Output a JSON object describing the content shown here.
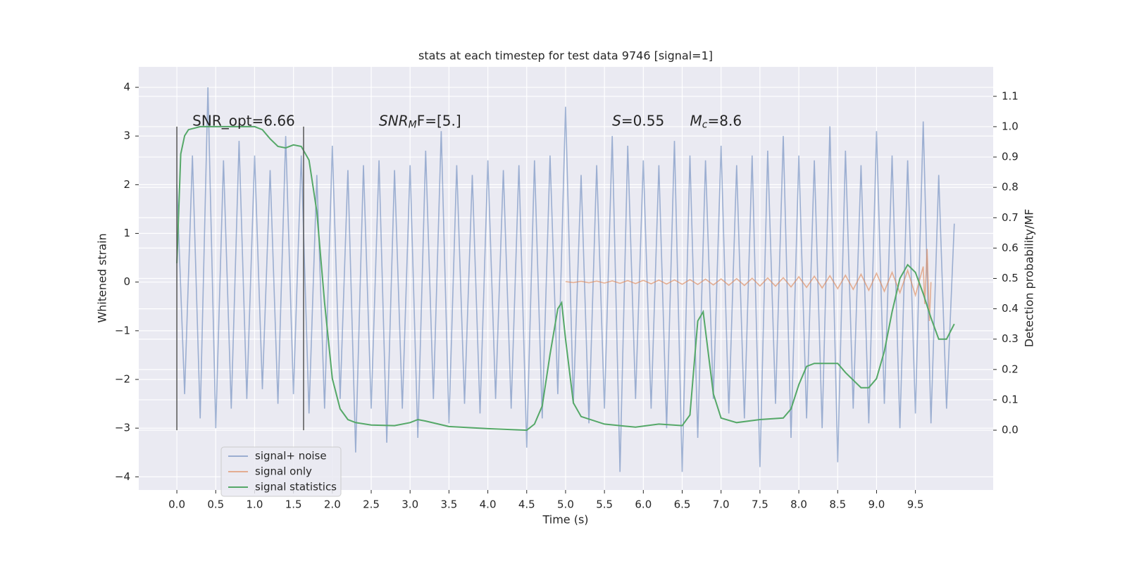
{
  "chart_data": {
    "type": "line",
    "title": "stats at each timestep for test data 9746 [signal=1]",
    "xlabel": "Time (s)",
    "ylabel": "Whitened strain",
    "y2label": "Detection probability/MF",
    "xlim": [
      -0.49,
      10.5
    ],
    "ylim": [
      -4.27,
      4.42
    ],
    "y2lim": [
      -0.197,
      1.197
    ],
    "xticks": [
      {
        "value": 0,
        "label": "0.0"
      },
      0.5,
      {
        "value": 1,
        "label": "1.0"
      },
      1.5,
      {
        "value": 2,
        "label": "2.0"
      },
      2.5,
      {
        "value": 3,
        "label": "3.0"
      },
      3.5,
      {
        "value": 4,
        "label": "4.0"
      },
      4.5,
      {
        "value": 5,
        "label": "5.0"
      },
      5.5,
      {
        "value": 6,
        "label": "6.0"
      },
      6.5,
      {
        "value": 7,
        "label": "7.0"
      },
      7.5,
      {
        "value": 8,
        "label": "8.0"
      },
      8.5,
      {
        "value": 9,
        "label": "9.0"
      },
      9.5
    ],
    "yticks": [
      {
        "value": -4,
        "label": "−4"
      },
      {
        "value": -3,
        "label": "−3"
      },
      {
        "value": -2,
        "label": "−2"
      },
      {
        "value": -1,
        "label": "−1"
      },
      0,
      1,
      2,
      3,
      4
    ],
    "y2ticks": [
      {
        "value": 0,
        "label": "0.0"
      },
      0.1,
      0.2,
      0.3,
      0.4,
      0.5,
      0.6,
      0.7,
      0.8,
      0.9,
      {
        "value": 1,
        "label": "1.0"
      },
      1.1
    ],
    "grid": true,
    "legend": "lower left",
    "vlines": {
      "x": [
        0,
        1.63
      ],
      "ymin": 0,
      "ymax": 1,
      "axis": "y2",
      "color": "#555555"
    },
    "annotations": [
      {
        "text": "SNR_opt=6.66",
        "x": 0.2,
        "y": 3.3
      },
      {
        "text": "SNR",
        "sub": "M",
        "rest": "F=[5.]",
        "x": 2.6,
        "y": 3.3,
        "italic": true
      },
      {
        "text": "S",
        "rest": "=0.55",
        "x": 5.6,
        "y": 3.3,
        "italic": true
      },
      {
        "text": "M",
        "sub": "c",
        "rest": "=8.6",
        "x": 6.6,
        "y": 3.3,
        "italic": true
      }
    ],
    "series": [
      {
        "name": "signal+ noise",
        "color": "#4c72b0",
        "opacity": 0.5,
        "axis": "y",
        "x": [
          0,
          0.1,
          0.2,
          0.3,
          0.4,
          0.5,
          0.6,
          0.7,
          0.8,
          0.9,
          1,
          1.1,
          1.2,
          1.3,
          1.4,
          1.5,
          1.6,
          1.7,
          1.8,
          1.9,
          2,
          2.1,
          2.2,
          2.3,
          2.4,
          2.5,
          2.6,
          2.7,
          2.8,
          2.9,
          3,
          3.1,
          3.2,
          3.3,
          3.4,
          3.5,
          3.6,
          3.7,
          3.8,
          3.9,
          4,
          4.1,
          4.2,
          4.3,
          4.4,
          4.5,
          4.6,
          4.7,
          4.8,
          4.9,
          5,
          5.1,
          5.2,
          5.3,
          5.4,
          5.5,
          5.6,
          5.7,
          5.8,
          5.9,
          6,
          6.1,
          6.2,
          6.3,
          6.4,
          6.5,
          6.6,
          6.7,
          6.8,
          6.9,
          7,
          7.1,
          7.2,
          7.3,
          7.4,
          7.5,
          7.6,
          7.7,
          7.8,
          7.9,
          8,
          8.1,
          8.2,
          8.3,
          8.4,
          8.5,
          8.6,
          8.7,
          8.8,
          8.9,
          9,
          9.1,
          9.2,
          9.3,
          9.4,
          9.5,
          9.6,
          9.7,
          9.8,
          9.9,
          10
        ],
        "values": [
          2.0,
          -2.3,
          2.6,
          -2.8,
          4.0,
          -3.0,
          2.5,
          -2.6,
          2.9,
          -2.4,
          2.6,
          -2.2,
          2.3,
          -2.5,
          3.0,
          -2.3,
          2.6,
          -2.7,
          2.2,
          -2.6,
          2.8,
          -2.4,
          2.3,
          -3.5,
          2.4,
          -2.6,
          2.5,
          -3.3,
          2.3,
          -2.6,
          2.4,
          -3.2,
          2.7,
          -2.4,
          3.1,
          -2.9,
          2.4,
          -2.5,
          2.2,
          -2.7,
          2.5,
          -2.4,
          2.3,
          -2.6,
          2.4,
          -3.4,
          2.5,
          -2.8,
          2.6,
          -2.3,
          3.6,
          -2.5,
          2.2,
          -2.9,
          2.4,
          -2.6,
          3.0,
          -3.9,
          2.8,
          -2.4,
          2.5,
          -2.6,
          2.4,
          -3.0,
          2.9,
          -3.9,
          2.6,
          -3.2,
          2.5,
          -2.4,
          2.8,
          -2.7,
          2.4,
          -2.8,
          2.6,
          -3.8,
          2.7,
          -2.5,
          3.0,
          -3.2,
          2.6,
          -2.8,
          2.5,
          -3.0,
          3.2,
          -3.7,
          2.7,
          -2.6,
          2.4,
          -2.9,
          3.1,
          -2.5,
          2.6,
          -3.0,
          2.5,
          -2.7,
          3.3,
          -2.9,
          2.2,
          -2.6,
          1.2
        ]
      },
      {
        "name": "signal only",
        "color": "#dd8452",
        "opacity": 0.6,
        "axis": "y",
        "x": [
          5,
          5.1,
          5.2,
          5.3,
          5.4,
          5.5,
          5.6,
          5.7,
          5.8,
          5.9,
          6,
          6.1,
          6.2,
          6.3,
          6.4,
          6.5,
          6.6,
          6.7,
          6.8,
          6.9,
          7,
          7.1,
          7.2,
          7.3,
          7.4,
          7.5,
          7.6,
          7.7,
          7.8,
          7.9,
          8,
          8.1,
          8.2,
          8.3,
          8.4,
          8.5,
          8.6,
          8.7,
          8.8,
          8.9,
          9,
          9.1,
          9.2,
          9.3,
          9.4,
          9.5,
          9.6,
          9.62,
          9.65,
          9.68,
          9.7
        ],
        "values": [
          0.01,
          -0.01,
          0.015,
          -0.015,
          0.02,
          -0.02,
          0.025,
          -0.025,
          0.03,
          -0.03,
          0.035,
          -0.035,
          0.04,
          -0.04,
          0.045,
          -0.045,
          0.05,
          -0.05,
          0.06,
          -0.06,
          0.065,
          -0.065,
          0.07,
          -0.07,
          0.08,
          -0.08,
          0.085,
          -0.085,
          0.09,
          -0.1,
          0.11,
          -0.11,
          0.12,
          -0.12,
          0.13,
          -0.135,
          0.14,
          -0.15,
          0.16,
          -0.17,
          0.18,
          -0.19,
          0.2,
          -0.22,
          0.24,
          -0.27,
          0.32,
          -0.45,
          0.68,
          -0.8,
          0
        ]
      },
      {
        "name": "signal statistics",
        "color": "#55a868",
        "opacity": 1,
        "axis": "y2",
        "x": [
          0,
          0.05,
          0.1,
          0.15,
          0.3,
          1,
          1.1,
          1.2,
          1.3,
          1.4,
          1.5,
          1.6,
          1.7,
          1.8,
          1.9,
          2,
          2.1,
          2.2,
          2.3,
          2.5,
          2.8,
          3,
          3.1,
          3.2,
          3.5,
          4,
          4.5,
          4.6,
          4.7,
          4.8,
          4.9,
          4.95,
          5,
          5.1,
          5.2,
          5.5,
          5.9,
          6.2,
          6.5,
          6.6,
          6.7,
          6.77,
          6.9,
          7,
          7.2,
          7.5,
          7.8,
          7.9,
          8,
          8.1,
          8.2,
          8.5,
          8.6,
          8.8,
          8.9,
          9,
          9.1,
          9.2,
          9.3,
          9.4,
          9.5,
          9.6,
          9.7,
          9.8,
          9.9,
          10
        ],
        "values": [
          0.55,
          0.91,
          0.97,
          0.99,
          1.0,
          1.0,
          0.99,
          0.96,
          0.935,
          0.93,
          0.94,
          0.935,
          0.89,
          0.72,
          0.42,
          0.17,
          0.07,
          0.035,
          0.025,
          0.017,
          0.015,
          0.025,
          0.035,
          0.03,
          0.012,
          0.005,
          0.0,
          0.02,
          0.08,
          0.25,
          0.4,
          0.42,
          0.3,
          0.09,
          0.045,
          0.02,
          0.01,
          0.02,
          0.015,
          0.05,
          0.36,
          0.39,
          0.12,
          0.04,
          0.025,
          0.035,
          0.04,
          0.07,
          0.15,
          0.21,
          0.22,
          0.22,
          0.19,
          0.14,
          0.14,
          0.17,
          0.26,
          0.39,
          0.5,
          0.545,
          0.52,
          0.45,
          0.37,
          0.3,
          0.3,
          0.35
        ]
      }
    ]
  }
}
